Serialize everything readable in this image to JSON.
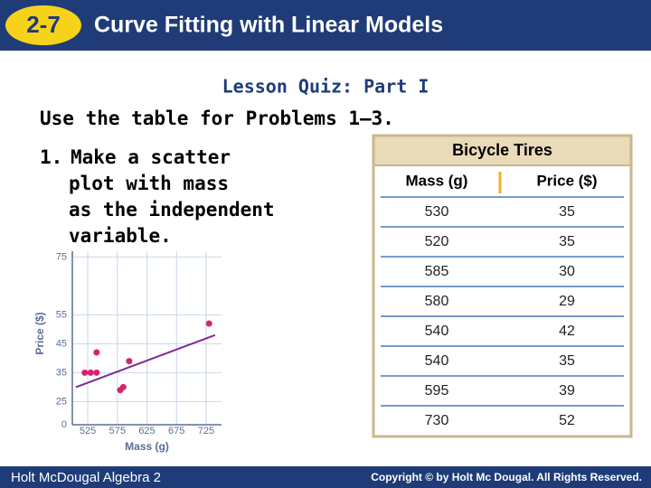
{
  "header": {
    "lesson_number": "2-7",
    "title": "Curve Fitting with Linear Models"
  },
  "subtitle": "Lesson Quiz: Part I",
  "instructions": "Use the table for Problems 1–3.",
  "problem": {
    "number": "1.",
    "lines": [
      "Make a scatter",
      "plot with mass",
      "as the independent",
      "variable."
    ]
  },
  "table": {
    "title": "Bicycle Tires",
    "headers": [
      "Mass (g)",
      "Price ($)"
    ],
    "rows": [
      [
        530,
        35
      ],
      [
        520,
        35
      ],
      [
        585,
        30
      ],
      [
        580,
        29
      ],
      [
        540,
        42
      ],
      [
        540,
        35
      ],
      [
        595,
        39
      ],
      [
        730,
        52
      ]
    ]
  },
  "chart_data": {
    "type": "scatter",
    "x_label": "Mass (g)",
    "y_label": "Price ($)",
    "origin_label": "0",
    "x": [
      530,
      520,
      585,
      580,
      540,
      540,
      595,
      730
    ],
    "values": [
      35,
      35,
      30,
      29,
      42,
      35,
      39,
      52
    ],
    "color": "#d6246e",
    "xlim": [
      499,
      751
    ],
    "ylim": [
      17,
      77
    ],
    "xticks": [
      525,
      575,
      625,
      675,
      725
    ],
    "yticks": [
      25,
      35,
      45,
      55,
      75
    ],
    "grid": true,
    "trendline": {
      "x": [
        505,
        740
      ],
      "y": [
        30,
        48
      ],
      "color": "#7b2d8e"
    }
  },
  "footer": {
    "left": "Holt McDougal Algebra 2",
    "right": "Copyright © by Holt Mc Dougal. All Rights Reserved."
  }
}
